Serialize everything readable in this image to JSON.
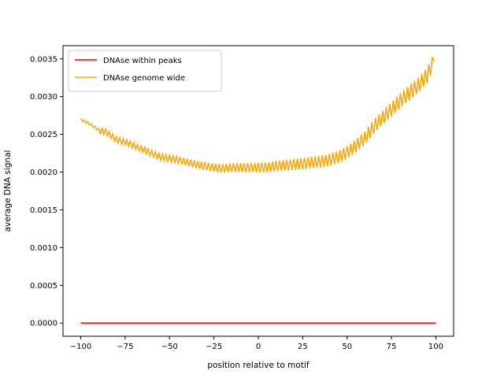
{
  "chart_data": {
    "type": "line",
    "xlabel": "position relative to motif",
    "ylabel": "average DNA signal",
    "xlim": [
      -110,
      110
    ],
    "ylim": [
      -0.000175,
      0.003675
    ],
    "x_ticks": [
      -100,
      -75,
      -50,
      -25,
      0,
      25,
      50,
      75,
      100
    ],
    "x_tick_labels": [
      "−100",
      "−75",
      "−50",
      "−25",
      "0",
      "25",
      "50",
      "75",
      "100"
    ],
    "y_ticks": [
      0,
      0.0005,
      0.001,
      0.0015,
      0.002,
      0.0025,
      0.003,
      0.0035
    ],
    "y_tick_labels": [
      "0.0000",
      "0.0005",
      "0.0010",
      "0.0015",
      "0.0020",
      "0.0025",
      "0.0030",
      "0.0035"
    ],
    "grid": false,
    "legend_position": "top-left",
    "series": [
      {
        "name": "DNAse within peaks",
        "color": "#ff0000",
        "x": [
          -100,
          100
        ],
        "y": [
          0.0,
          0.0
        ]
      },
      {
        "name": "DNAse genome wide",
        "color": "#ffa500",
        "x": [
          -100,
          -95,
          -90,
          -85,
          -80,
          -75,
          -70,
          -65,
          -60,
          -55,
          -50,
          -45,
          -40,
          -35,
          -30,
          -25,
          -20,
          -15,
          -10,
          -5,
          0,
          5,
          10,
          15,
          20,
          25,
          30,
          35,
          40,
          45,
          50,
          55,
          60,
          65,
          70,
          75,
          80,
          85,
          90,
          95,
          99
        ],
        "y": [
          0.0027,
          0.00264,
          0.00256,
          0.00252,
          0.00243,
          0.0024,
          0.00235,
          0.0023,
          0.00225,
          0.0022,
          0.00218,
          0.00216,
          0.00213,
          0.0021,
          0.00208,
          0.00206,
          0.00205,
          0.00206,
          0.00206,
          0.00206,
          0.00206,
          0.00206,
          0.00208,
          0.00209,
          0.0021,
          0.00211,
          0.00213,
          0.00214,
          0.00216,
          0.0022,
          0.00226,
          0.00235,
          0.00245,
          0.0026,
          0.00272,
          0.00283,
          0.00295,
          0.00305,
          0.00315,
          0.00328,
          0.00347
        ]
      }
    ]
  }
}
